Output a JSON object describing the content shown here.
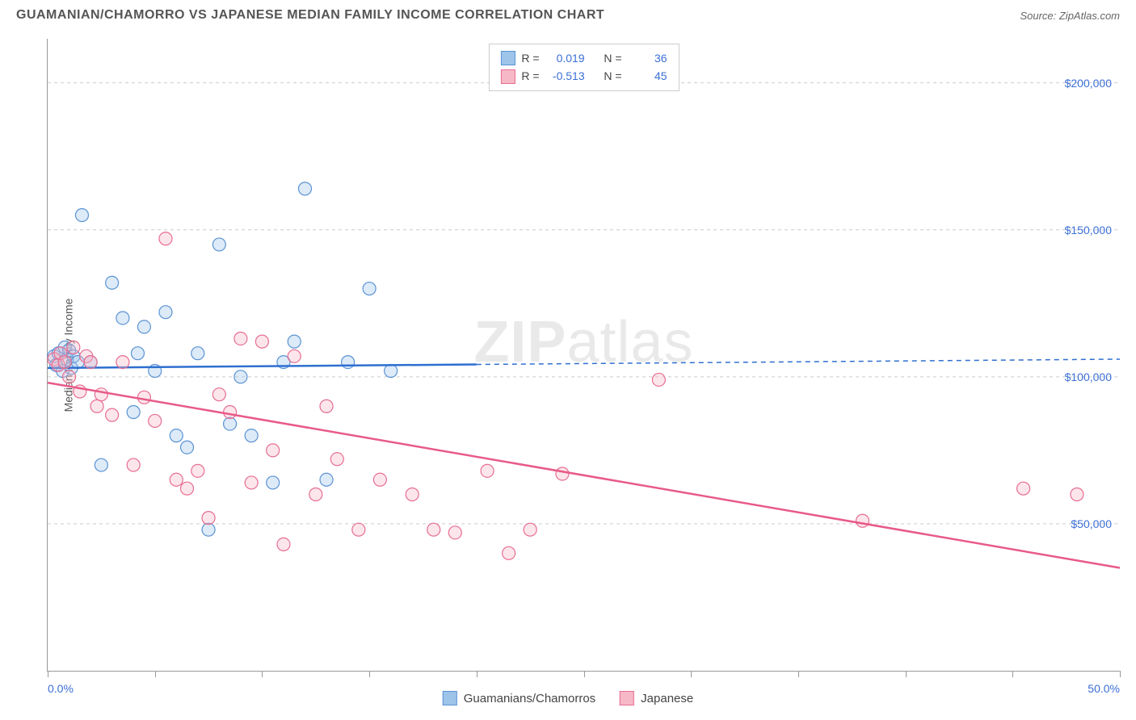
{
  "title": "GUAMANIAN/CHAMORRO VS JAPANESE MEDIAN FAMILY INCOME CORRELATION CHART",
  "source": "Source: ZipAtlas.com",
  "watermark_a": "ZIP",
  "watermark_b": "atlas",
  "ylabel": "Median Family Income",
  "chart": {
    "type": "scatter",
    "xlim": [
      0,
      50
    ],
    "ylim": [
      0,
      215000
    ],
    "x_ticks": [
      0,
      5,
      10,
      15,
      20,
      25,
      30,
      35,
      40,
      45,
      50
    ],
    "x_tick_labels_shown": {
      "first": "0.0%",
      "last": "50.0%"
    },
    "y_gridlines": [
      50000,
      100000,
      150000,
      200000
    ],
    "y_tick_labels": [
      "$50,000",
      "$100,000",
      "$150,000",
      "$200,000"
    ],
    "grid_color": "#cccccc",
    "axis_color": "#999999",
    "background_color": "#ffffff",
    "label_color": "#3b6fd6",
    "marker_radius": 8,
    "marker_fill_opacity": 0.35,
    "marker_stroke_width": 1.2,
    "series": [
      {
        "name": "Guamanians/Chamorros",
        "color_fill": "#9ec4ea",
        "color_stroke": "#5a93d4",
        "line_color": "#2e6fd0",
        "r": 0.019,
        "n": 36,
        "regression": {
          "x1": 0,
          "y1": 103000,
          "x2": 50,
          "y2": 106000,
          "solid_until_x": 20
        },
        "points": [
          [
            0.3,
            107000
          ],
          [
            0.4,
            104000
          ],
          [
            0.5,
            108000
          ],
          [
            0.7,
            102000
          ],
          [
            0.8,
            110000
          ],
          [
            0.9,
            106000
          ],
          [
            1.0,
            109000
          ],
          [
            1.1,
            103000
          ],
          [
            1.2,
            107000
          ],
          [
            1.4,
            105000
          ],
          [
            1.6,
            155000
          ],
          [
            2.0,
            105000
          ],
          [
            2.5,
            70000
          ],
          [
            3.0,
            132000
          ],
          [
            3.5,
            120000
          ],
          [
            4.0,
            88000
          ],
          [
            4.2,
            108000
          ],
          [
            4.5,
            117000
          ],
          [
            5.0,
            102000
          ],
          [
            5.5,
            122000
          ],
          [
            6.0,
            80000
          ],
          [
            6.5,
            76000
          ],
          [
            7.0,
            108000
          ],
          [
            7.5,
            48000
          ],
          [
            8.0,
            145000
          ],
          [
            8.5,
            84000
          ],
          [
            9.0,
            100000
          ],
          [
            9.5,
            80000
          ],
          [
            10.5,
            64000
          ],
          [
            11.0,
            105000
          ],
          [
            11.5,
            112000
          ],
          [
            12.0,
            164000
          ],
          [
            13.0,
            65000
          ],
          [
            14.0,
            105000
          ],
          [
            15.0,
            130000
          ],
          [
            16.0,
            102000
          ]
        ]
      },
      {
        "name": "Japanese",
        "color_fill": "#f6b8c7",
        "color_stroke": "#e76d92",
        "line_color": "#e85a88",
        "r": -0.513,
        "n": 45,
        "regression": {
          "x1": 0,
          "y1": 98000,
          "x2": 50,
          "y2": 35000,
          "solid_until_x": 50
        },
        "points": [
          [
            0.3,
            106000
          ],
          [
            0.5,
            104000
          ],
          [
            0.6,
            108000
          ],
          [
            0.8,
            105000
          ],
          [
            1.0,
            100000
          ],
          [
            1.2,
            110000
          ],
          [
            1.5,
            95000
          ],
          [
            1.8,
            107000
          ],
          [
            2.0,
            105000
          ],
          [
            2.3,
            90000
          ],
          [
            2.5,
            94000
          ],
          [
            3.0,
            87000
          ],
          [
            3.5,
            105000
          ],
          [
            4.0,
            70000
          ],
          [
            4.5,
            93000
          ],
          [
            5.0,
            85000
          ],
          [
            5.5,
            147000
          ],
          [
            6.0,
            65000
          ],
          [
            6.5,
            62000
          ],
          [
            7.0,
            68000
          ],
          [
            7.5,
            52000
          ],
          [
            8.0,
            94000
          ],
          [
            8.5,
            88000
          ],
          [
            9.0,
            113000
          ],
          [
            9.5,
            64000
          ],
          [
            10.0,
            112000
          ],
          [
            10.5,
            75000
          ],
          [
            11.0,
            43000
          ],
          [
            11.5,
            107000
          ],
          [
            12.5,
            60000
          ],
          [
            13.0,
            90000
          ],
          [
            13.5,
            72000
          ],
          [
            14.5,
            48000
          ],
          [
            15.5,
            65000
          ],
          [
            17.0,
            60000
          ],
          [
            18.0,
            48000
          ],
          [
            19.0,
            47000
          ],
          [
            20.5,
            68000
          ],
          [
            21.5,
            40000
          ],
          [
            22.5,
            48000
          ],
          [
            24.0,
            67000
          ],
          [
            28.5,
            99000
          ],
          [
            38.0,
            51000
          ],
          [
            45.5,
            62000
          ],
          [
            48.0,
            60000
          ]
        ]
      }
    ]
  },
  "legend_top_label_r": "R =",
  "legend_top_label_n": "N =",
  "legend_bottom": [
    {
      "label": "Guamanians/Chamorros",
      "fill": "#9ec4ea",
      "stroke": "#5a93d4"
    },
    {
      "label": "Japanese",
      "fill": "#f6b8c7",
      "stroke": "#e76d92"
    }
  ]
}
